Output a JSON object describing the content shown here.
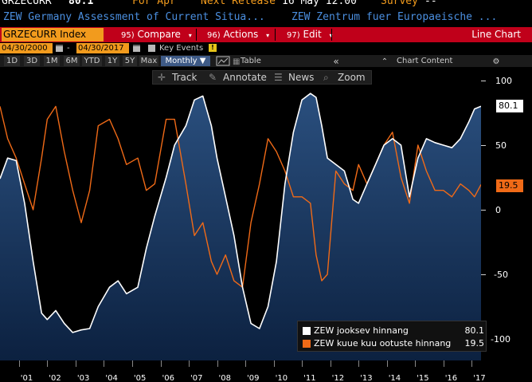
{
  "header": {
    "ticker": "GRZECURR",
    "price": "80.1",
    "for_label": "For Apr",
    "next_release_label": "Next Release",
    "next_release_value": "16 May 12:00",
    "survey_label": "Survey",
    "survey_value": "--",
    "description_left": "ZEW Germany Assessment of Current Situa...",
    "description_right": "ZEW Zentrum fuer Europaeische ..."
  },
  "toolbar": {
    "security": "GRZECURR Index",
    "compare_num": "95)",
    "compare_label": "Compare",
    "actions_num": "96)",
    "actions_label": "Actions",
    "edit_num": "97)",
    "edit_label": "Edit",
    "chart_type": "Line Chart"
  },
  "date_range": {
    "start": "04/30/2000",
    "end": "04/30/2017",
    "separator": "-",
    "key_events_label": "Key Events"
  },
  "periods": {
    "items": [
      "1D",
      "3D",
      "1M",
      "6M",
      "YTD",
      "1Y",
      "5Y",
      "Max"
    ],
    "frequency": "Monthly",
    "table_label": "Table",
    "chart_content_label": "Chart Content"
  },
  "chart_tools": {
    "track": "Track",
    "annotate": "Annotate",
    "news": "News",
    "zoom": "Zoom"
  },
  "colors": {
    "accent_orange": "#f29b1d",
    "toolbar_red": "#c0001a",
    "series_white": "#ffffff",
    "series_orange": "#f06a17",
    "area_fill": "#0e2a4d"
  },
  "chart_data": {
    "type": "line",
    "x_ticks": [
      "'01",
      "'02",
      "'03",
      "'04",
      "'05",
      "'06",
      "'07",
      "'08",
      "'09",
      "'10",
      "'11",
      "'12",
      "'13",
      "'14",
      "'15",
      "'16",
      "'17"
    ],
    "y_ticks": [
      "100",
      "50",
      "0",
      "-50",
      "-100"
    ],
    "ylim": [
      -110,
      110
    ],
    "xlim": [
      2000.33,
      2017.33
    ],
    "grid": false,
    "legend_position": "bottom-right",
    "series": [
      {
        "name": "ZEW jooksev hinnang",
        "last_value": "80.1",
        "color": "#ffffff",
        "area": true,
        "x": [
          2000.33,
          2000.6,
          2000.9,
          2001.2,
          2001.5,
          2001.8,
          2002.0,
          2002.3,
          2002.6,
          2002.9,
          2003.2,
          2003.5,
          2003.8,
          2004.2,
          2004.5,
          2004.8,
          2005.2,
          2005.5,
          2005.8,
          2006.2,
          2006.5,
          2006.9,
          2007.2,
          2007.5,
          2007.8,
          2008.0,
          2008.3,
          2008.6,
          2008.9,
          2009.2,
          2009.5,
          2009.8,
          2010.1,
          2010.4,
          2010.7,
          2011.0,
          2011.3,
          2011.5,
          2011.7,
          2011.9,
          2012.2,
          2012.5,
          2012.8,
          2013.0,
          2013.3,
          2013.6,
          2013.9,
          2014.2,
          2014.5,
          2014.8,
          2015.1,
          2015.4,
          2015.7,
          2016.0,
          2016.3,
          2016.6,
          2016.9,
          2017.1,
          2017.33
        ],
        "values": [
          24,
          40,
          38,
          5,
          -40,
          -80,
          -85,
          -78,
          -88,
          -95,
          -93,
          -92,
          -75,
          -60,
          -55,
          -65,
          -60,
          -30,
          -5,
          25,
          50,
          65,
          85,
          88,
          65,
          40,
          10,
          -20,
          -60,
          -88,
          -92,
          -75,
          -40,
          20,
          60,
          85,
          90,
          87,
          65,
          40,
          35,
          30,
          8,
          5,
          20,
          35,
          50,
          55,
          50,
          10,
          40,
          55,
          52,
          50,
          48,
          55,
          68,
          78,
          80.1
        ]
      },
      {
        "name": "ZEW kuue kuu ootuste hinnang",
        "last_value": "19.5",
        "color": "#f06a17",
        "area": false,
        "x": [
          2000.33,
          2000.6,
          2000.9,
          2001.2,
          2001.5,
          2001.8,
          2002.0,
          2002.3,
          2002.6,
          2002.9,
          2003.2,
          2003.5,
          2003.8,
          2004.2,
          2004.5,
          2004.8,
          2005.2,
          2005.5,
          2005.8,
          2006.2,
          2006.5,
          2006.9,
          2007.2,
          2007.5,
          2007.8,
          2008.0,
          2008.3,
          2008.6,
          2008.9,
          2009.2,
          2009.5,
          2009.8,
          2010.1,
          2010.4,
          2010.7,
          2011.0,
          2011.3,
          2011.5,
          2011.7,
          2011.9,
          2012.2,
          2012.5,
          2012.8,
          2013.0,
          2013.3,
          2013.6,
          2013.9,
          2014.2,
          2014.5,
          2014.8,
          2015.1,
          2015.4,
          2015.7,
          2016.0,
          2016.3,
          2016.6,
          2016.9,
          2017.1,
          2017.33
        ],
        "values": [
          80,
          55,
          40,
          20,
          0,
          40,
          70,
          80,
          45,
          15,
          -10,
          15,
          65,
          70,
          55,
          35,
          40,
          15,
          20,
          70,
          70,
          20,
          -20,
          -10,
          -40,
          -50,
          -35,
          -55,
          -60,
          -10,
          20,
          55,
          45,
          30,
          10,
          10,
          5,
          -35,
          -55,
          -50,
          30,
          20,
          15,
          35,
          20,
          35,
          50,
          60,
          25,
          5,
          50,
          30,
          15,
          15,
          10,
          20,
          15,
          10,
          19.5
        ]
      }
    ]
  }
}
